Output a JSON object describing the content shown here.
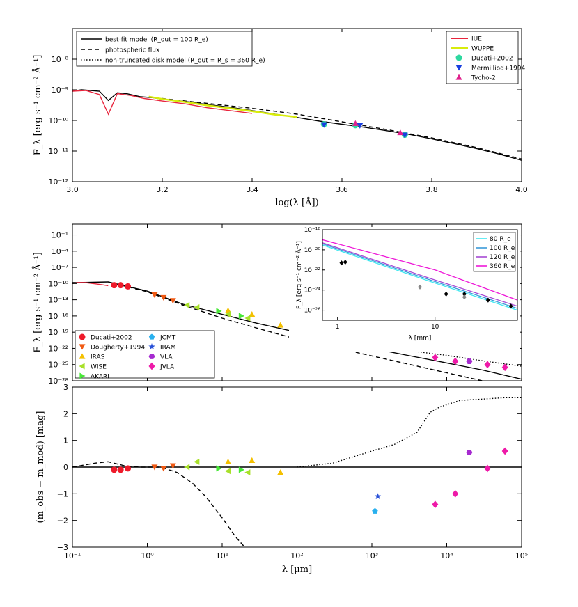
{
  "chart_data": [
    {
      "type": "line",
      "panel": "top",
      "xlabel": "log(λ [Å])",
      "ylabel": "F_λ [erg s⁻¹ cm⁻² Å⁻¹]",
      "xscale": "linear",
      "yscale": "log",
      "xlim": [
        3.0,
        4.0
      ],
      "ylim": [
        1e-12,
        1e-07
      ],
      "xticks": [
        "3.0",
        "3.2",
        "3.4",
        "3.6",
        "3.8",
        "4.0"
      ],
      "yticks": [
        "10⁻¹²",
        "10⁻¹¹",
        "10⁻¹⁰",
        "10⁻⁹",
        "10⁻⁸"
      ],
      "legend_left": {
        "placement": "top-left",
        "entries": [
          {
            "label": "best-fit model (R_out = 100 R_e)",
            "style": "solid"
          },
          {
            "label": "photospheric flux",
            "style": "dashed"
          },
          {
            "label": "non-truncated disk model (R_out = R_s = 360 R_e)",
            "style": "dotted"
          }
        ]
      },
      "legend_right": {
        "placement": "top-right",
        "entries": [
          {
            "label": "IUE",
            "color": "#e8253d",
            "marker": "line"
          },
          {
            "label": "WUPPE",
            "color": "#d8ec0c",
            "marker": "line"
          },
          {
            "label": "Ducati+2002",
            "color": "#2ed8a0",
            "marker": "circle"
          },
          {
            "label": "Mermilliod+1994",
            "color": "#1a3fe0",
            "marker": "triangle-down"
          },
          {
            "label": "Tycho-2",
            "color": "#e0208c",
            "marker": "triangle-up"
          }
        ]
      },
      "series": [
        {
          "name": "best-fit model",
          "color": "#000000",
          "style": "solid",
          "x": [
            3.0,
            3.02,
            3.04,
            3.06,
            3.08,
            3.1,
            3.12,
            3.15,
            3.18,
            3.2,
            3.25,
            3.3,
            3.35,
            3.4,
            3.45,
            3.5,
            3.55,
            3.6,
            3.65,
            3.7,
            3.75,
            3.8,
            3.85,
            3.9,
            3.95,
            4.0
          ],
          "y": [
            9e-10,
            1e-09,
            9.5e-10,
            9e-10,
            4.5e-10,
            8e-10,
            7.5e-10,
            6e-10,
            5.5e-10,
            4.9e-10,
            4.2e-10,
            3.3e-10,
            2.7e-10,
            2.1e-10,
            1.6e-10,
            1.25e-10,
            9.5e-11,
            7.5e-11,
            6e-11,
            4.6e-11,
            3.5e-11,
            2.5e-11,
            1.75e-11,
            1.2e-11,
            8e-12,
            5e-12
          ]
        },
        {
          "name": "photospheric flux",
          "color": "#000000",
          "style": "dashed",
          "x": [
            3.2,
            3.3,
            3.4,
            3.5,
            3.6,
            3.7,
            3.8,
            3.9,
            4.0
          ],
          "y": [
            5.2e-10,
            3.6e-10,
            2.5e-10,
            1.6e-10,
            9e-11,
            5e-11,
            2.7e-11,
            1.3e-11,
            5.5e-12
          ]
        },
        {
          "name": "IUE",
          "color": "#e8253d",
          "style": "solid",
          "x": [
            3.0,
            3.03,
            3.06,
            3.08,
            3.1,
            3.13,
            3.16,
            3.2,
            3.25,
            3.3,
            3.35,
            3.4
          ],
          "y": [
            9e-10,
            9.5e-10,
            7e-10,
            1.6e-10,
            7.5e-10,
            6.5e-10,
            5.2e-10,
            4.3e-10,
            3.5e-10,
            2.6e-10,
            2.1e-10,
            1.7e-10
          ]
        },
        {
          "name": "WUPPE",
          "color": "#d8ec0c",
          "style": "solid",
          "x": [
            3.17,
            3.2,
            3.25,
            3.3,
            3.35,
            3.4,
            3.45,
            3.5
          ],
          "y": [
            6e-10,
            5e-10,
            4e-10,
            3.1e-10,
            2.5e-10,
            2e-10,
            1.55e-10,
            1.3e-10
          ]
        }
      ],
      "points": [
        {
          "name": "Ducati+2002",
          "x": [
            3.56,
            3.63,
            3.74
          ],
          "y": [
            7.5e-11,
            7e-11,
            3.4e-11
          ]
        },
        {
          "name": "Mermilliod+1994",
          "x": [
            3.56,
            3.64,
            3.74
          ],
          "y": [
            7.2e-11,
            6.8e-11,
            3.3e-11
          ]
        },
        {
          "name": "Tycho-2",
          "x": [
            3.63,
            3.73
          ],
          "y": [
            8e-11,
            4e-11
          ]
        }
      ]
    },
    {
      "type": "scatter",
      "panel": "middle",
      "ylabel": "F_λ [erg s⁻¹ cm⁻² Å⁻¹]",
      "xscale": "log",
      "yscale": "log",
      "xlim": [
        0.1,
        100000
      ],
      "ylim": [
        1e-28,
        10
      ],
      "yticks": [
        "10⁻²⁸",
        "10⁻²⁵",
        "10⁻²²",
        "10⁻¹⁹",
        "10⁻¹⁶",
        "10⁻¹³",
        "10⁻¹⁰",
        "10⁻⁷",
        "10⁻⁴",
        "10⁻¹"
      ],
      "legend": {
        "placement": "bottom-left",
        "entries": [
          {
            "label": "Ducati+2002",
            "color": "#ee1a2a",
            "marker": "circle"
          },
          {
            "label": "JCMT",
            "color": "#28b0ee",
            "marker": "pentagon"
          },
          {
            "label": "Dougherty+1994",
            "color": "#f05a14",
            "marker": "triangle-down"
          },
          {
            "label": "IRAM",
            "color": "#2a52d8",
            "marker": "star"
          },
          {
            "label": "IRAS",
            "color": "#f4c000",
            "marker": "triangle-up"
          },
          {
            "label": "VLA",
            "color": "#a62ad0",
            "marker": "hexagon"
          },
          {
            "label": "WISE",
            "color": "#a8e02a",
            "marker": "triangle-left"
          },
          {
            "label": "JVLA",
            "color": "#ee1aa8",
            "marker": "diamond"
          },
          {
            "label": "AKARI",
            "color": "#48e838",
            "marker": "triangle-right"
          }
        ]
      },
      "series": [
        {
          "name": "best-fit model",
          "style": "solid",
          "x": [
            0.1,
            0.3,
            1,
            3,
            10,
            30,
            100,
            300,
            1000,
            3000,
            10000,
            30000,
            100000
          ],
          "y": [
            1.5e-10,
            2e-10,
            4e-12,
            1.5e-14,
            2e-16,
            4e-18,
            1e-19,
            4e-21,
            1e-22,
            5e-24,
            2e-25,
            1e-26,
            2e-28
          ]
        },
        {
          "name": "photospheric flux",
          "style": "dashed",
          "x": [
            0.3,
            1,
            3,
            10,
            30,
            100,
            1000,
            10000,
            30000
          ],
          "y": [
            2e-10,
            3e-12,
            1e-14,
            4e-17,
            5e-19,
            5e-21,
            4e-24,
            3e-27,
            1e-28
          ]
        },
        {
          "name": "non-truncated disk model",
          "style": "dotted",
          "x": [
            100,
            300,
            1000,
            3000,
            10000,
            30000,
            100000
          ],
          "y": [
            1e-19,
            4e-21,
            3e-22,
            4e-23,
            5e-24,
            5e-25,
            5e-26
          ]
        },
        {
          "name": "IUE/WUPPE spectrum",
          "color": "#e8253d",
          "style": "solid",
          "x": [
            0.1,
            0.12,
            0.15,
            0.2,
            0.25,
            0.3
          ],
          "y": [
            1e-10,
            1.6e-10,
            1.5e-10,
            9e-11,
            6e-11,
            4e-11
          ]
        }
      ],
      "points": [
        {
          "name": "Ducati+2002",
          "x": [
            0.36,
            0.44,
            0.55
          ],
          "y": [
            5e-11,
            5e-11,
            3e-11
          ]
        },
        {
          "name": "Dougherty+1994",
          "x": [
            1.25,
            1.65,
            2.2
          ],
          "y": [
            8e-13,
            2.5e-13,
            7e-14
          ]
        },
        {
          "name": "IRAS",
          "x": [
            12,
            25,
            60
          ],
          "y": [
            1e-15,
            2e-16,
            2e-18
          ]
        },
        {
          "name": "WISE",
          "x": [
            3.4,
            4.6,
            12,
            22
          ],
          "y": [
            1e-14,
            4e-15,
            2e-16,
            4e-17
          ]
        },
        {
          "name": "AKARI",
          "x": [
            9,
            18
          ],
          "y": [
            8e-16,
            1e-16
          ]
        },
        {
          "name": "JCMT",
          "x": [
            1100
          ],
          "y": [
            2e-22
          ]
        },
        {
          "name": "IRAM",
          "x": [
            1200
          ],
          "y": [
            3e-22
          ]
        },
        {
          "name": "VLA",
          "x": [
            20000
          ],
          "y": [
            4e-25
          ]
        },
        {
          "name": "JVLA",
          "x": [
            7000,
            13000,
            35000,
            60000
          ],
          "y": [
            2e-24,
            4e-25,
            1e-25,
            3e-26
          ]
        }
      ],
      "inset": {
        "xlabel": "λ [mm]",
        "ylabel": "F_λ [erg s⁻¹ cm⁻² Å⁻¹]",
        "xscale": "log",
        "yscale": "log",
        "xlim": [
          0.7,
          70
        ],
        "ylim": [
          1e-27,
          1e-18
        ],
        "xticks": [
          "1",
          "10"
        ],
        "yticks": [
          "10⁻¹⁸",
          "10⁻²⁰",
          "10⁻²²",
          "10⁻²⁴",
          "10⁻²⁶"
        ],
        "legend": {
          "placement": "top-right",
          "entries": [
            {
              "label": "80 R_e",
              "color": "#3ee8f0"
            },
            {
              "label": "100 R_e",
              "color": "#3a9ad8"
            },
            {
              "label": "120 R_e",
              "color": "#a64ad4"
            },
            {
              "label": "360 R_e",
              "color": "#ee18d8"
            }
          ]
        },
        "series": [
          {
            "name": "80 R_e",
            "x": [
              0.7,
              10,
              70
            ],
            "y": [
              3e-20,
              5e-24,
              1e-26
            ]
          },
          {
            "name": "100 R_e",
            "x": [
              0.7,
              10,
              70
            ],
            "y": [
              4e-20,
              7e-24,
              1.5e-26
            ]
          },
          {
            "name": "120 R_e",
            "x": [
              0.7,
              10,
              70
            ],
            "y": [
              5e-20,
              1e-23,
              2.5e-26
            ]
          },
          {
            "name": "360 R_e",
            "x": [
              0.7,
              10,
              70
            ],
            "y": [
              1e-19,
              1e-22,
              1e-25
            ]
          }
        ],
        "points": [
          {
            "name": "mm detections",
            "color": "#000000",
            "x": [
              1.1,
              1.2,
              13,
              20,
              35,
              60
            ],
            "y": [
              5e-22,
              6e-22,
              4e-25,
              4e-25,
              1e-25,
              2.5e-26
            ]
          },
          {
            "name": "upper limits",
            "color": "#888888",
            "x": [
              7,
              20
            ],
            "y": [
              2e-24,
              2e-25
            ]
          }
        ]
      }
    },
    {
      "type": "scatter",
      "panel": "bottom",
      "xlabel": "λ [μm]",
      "ylabel": "(m_obs − m_mod) [mag]",
      "xscale": "log",
      "xlim": [
        0.1,
        100000
      ],
      "ylim": [
        -3,
        3
      ],
      "xticks": [
        "10⁻¹",
        "10⁰",
        "10¹",
        "10²",
        "10³",
        "10⁴",
        "10⁵"
      ],
      "yticks": [
        "−3",
        "−2",
        "−1",
        "0",
        "1",
        "2",
        "3"
      ],
      "series": [
        {
          "name": "zero line",
          "style": "solid",
          "x": [
            0.1,
            100000
          ],
          "y": [
            0,
            0
          ]
        },
        {
          "name": "photospheric flux",
          "style": "dashed",
          "x": [
            0.1,
            0.2,
            0.3,
            0.5,
            0.8,
            1.5,
            2.5,
            4,
            6,
            10,
            15,
            20
          ],
          "y": [
            0.0,
            0.15,
            0.2,
            0.05,
            0.0,
            0.0,
            -0.2,
            -0.6,
            -1.1,
            -1.9,
            -2.6,
            -3.0
          ]
        },
        {
          "name": "non-truncated disk model",
          "style": "dotted",
          "x": [
            100,
            300,
            1000,
            2000,
            4000,
            6000,
            8000,
            15000,
            30000,
            60000,
            100000
          ],
          "y": [
            0.0,
            0.15,
            0.6,
            0.85,
            1.3,
            2.05,
            2.25,
            2.5,
            2.55,
            2.6,
            2.6
          ]
        }
      ],
      "points": [
        {
          "name": "Ducati+2002",
          "x": [
            0.36,
            0.44,
            0.55
          ],
          "y": [
            -0.1,
            -0.1,
            -0.05
          ]
        },
        {
          "name": "Dougherty+1994",
          "x": [
            1.25,
            1.65,
            2.2
          ],
          "y": [
            0.0,
            -0.05,
            0.05
          ]
        },
        {
          "name": "IRAS",
          "x": [
            12,
            25,
            60
          ],
          "y": [
            0.2,
            0.25,
            -0.2
          ]
        },
        {
          "name": "WISE",
          "x": [
            3.4,
            4.6,
            12,
            22
          ],
          "y": [
            0.0,
            0.2,
            -0.15,
            -0.2
          ]
        },
        {
          "name": "AKARI",
          "x": [
            9,
            18
          ],
          "y": [
            -0.05,
            -0.1
          ]
        },
        {
          "name": "JCMT",
          "x": [
            1100
          ],
          "y": [
            -1.65
          ]
        },
        {
          "name": "IRAM",
          "x": [
            1200
          ],
          "y": [
            -1.1
          ]
        },
        {
          "name": "VLA",
          "x": [
            20000
          ],
          "y": [
            0.55
          ]
        },
        {
          "name": "JVLA",
          "x": [
            7000,
            13000,
            35000,
            60000
          ],
          "y": [
            -1.4,
            -1.0,
            -0.05,
            0.6
          ]
        }
      ]
    }
  ]
}
